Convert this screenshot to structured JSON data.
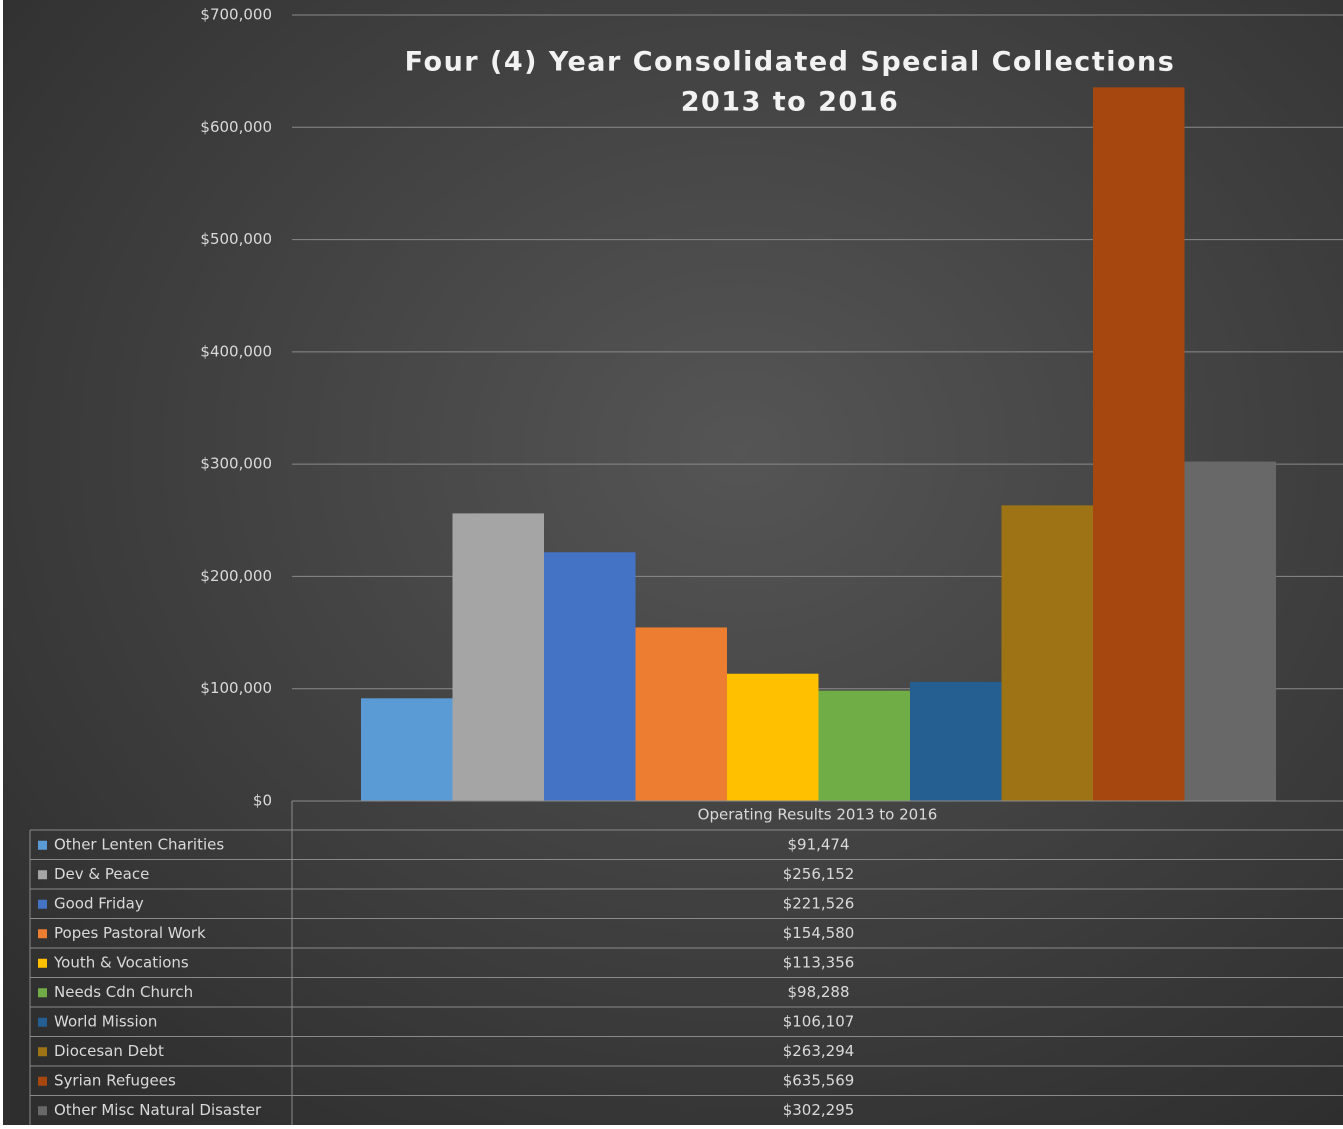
{
  "chart_data": {
    "type": "bar",
    "title": [
      "Four (4) Year Consolidated Special Collections",
      "2013 to 2016"
    ],
    "categories": [
      "Operating Results  2013 to 2016"
    ],
    "series": [
      {
        "name": "Other Lenten Charities",
        "color": "#5b9bd5",
        "values": [
          91474
        ],
        "value_labels": [
          "$91,474"
        ]
      },
      {
        "name": "Dev & Peace",
        "color": "#a5a5a5",
        "values": [
          256152
        ],
        "value_labels": [
          "$256,152"
        ]
      },
      {
        "name": "Good Friday",
        "color": "#4472c4",
        "values": [
          221526
        ],
        "value_labels": [
          "$221,526"
        ]
      },
      {
        "name": "Popes Pastoral Work",
        "color": "#ed7d31",
        "values": [
          154580
        ],
        "value_labels": [
          "$154,580"
        ]
      },
      {
        "name": "Youth & Vocations",
        "color": "#ffc000",
        "values": [
          113356
        ],
        "value_labels": [
          "$113,356"
        ]
      },
      {
        "name": "Needs Cdn Church",
        "color": "#70ad47",
        "values": [
          98288
        ],
        "value_labels": [
          "$98,288"
        ]
      },
      {
        "name": "World Mission",
        "color": "#255e91",
        "values": [
          106107
        ],
        "value_labels": [
          "$106,107"
        ]
      },
      {
        "name": "Diocesan Debt",
        "color": "#9e7316",
        "values": [
          263294
        ],
        "value_labels": [
          "$263,294"
        ]
      },
      {
        "name": "Syrian Refugees",
        "color": "#a5470e",
        "values": [
          635569
        ],
        "value_labels": [
          "$635,569"
        ]
      },
      {
        "name": "Other Misc Natural Disaster",
        "color": "#686868",
        "values": [
          302295
        ],
        "value_labels": [
          "$302,295"
        ]
      }
    ],
    "ylim": [
      0,
      700000
    ],
    "yticks": [
      {
        "value": 0,
        "label": "$0"
      },
      {
        "value": 100000,
        "label": "$100,000"
      },
      {
        "value": 200000,
        "label": "$200,000"
      },
      {
        "value": 300000,
        "label": "$300,000"
      },
      {
        "value": 400000,
        "label": "$400,000"
      },
      {
        "value": 500000,
        "label": "$500,000"
      },
      {
        "value": 600000,
        "label": "$600,000"
      },
      {
        "value": 700000,
        "label": "$700,000"
      }
    ],
    "grid": true
  }
}
